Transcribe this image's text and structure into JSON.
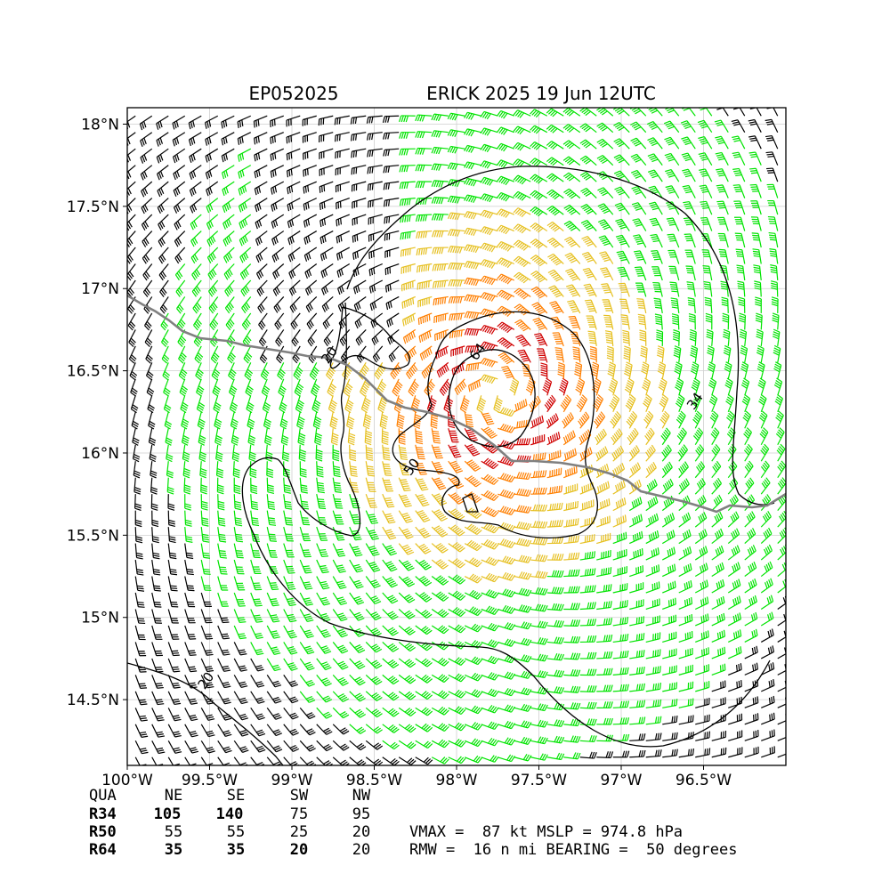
{
  "chart_data": {
    "type": "wind-barb map",
    "title_left": "EP052025",
    "title_right": "ERICK 2025 19 Jun 12UTC",
    "xlim": [
      -100.0,
      -96.0
    ],
    "ylim": [
      14.1,
      18.1
    ],
    "x_ticks": [
      -100,
      -99.5,
      -99,
      -98.5,
      -98,
      -97.5,
      -97,
      -96.5
    ],
    "x_tick_labels": [
      "100°W",
      "99.5°W",
      "99°W",
      "98.5°W",
      "98°W",
      "97.5°W",
      "97°W",
      "96.5°W"
    ],
    "y_ticks": [
      14.5,
      15,
      15.5,
      16,
      16.5,
      17,
      17.5,
      18
    ],
    "y_tick_labels": [
      "14.5°N",
      "15°N",
      "15.5°N",
      "16°N",
      "16.5°N",
      "17°N",
      "17.5°N",
      "18°N"
    ],
    "grid": true,
    "storm_center": {
      "lon": -97.75,
      "lat": 16.35
    },
    "contour_levels": [
      20,
      34,
      50,
      64
    ],
    "contour_labels": [
      {
        "text": "20",
        "lon": -98.75,
        "lat": 16.58
      },
      {
        "text": "20",
        "lon": -99.5,
        "lat": 14.6
      },
      {
        "text": "34",
        "lon": -96.53,
        "lat": 16.3
      },
      {
        "text": "50",
        "lon": -98.25,
        "lat": 15.9
      },
      {
        "text": "64",
        "lon": -97.85,
        "lat": 16.6
      }
    ],
    "speed_colors": {
      "below_34": "#000000",
      "34_to_50": "#00e400",
      "50_to_64": "#e6c020",
      "64_to_83": "#ff7f00",
      "above_83": "#d00000"
    },
    "contour_color": "#000000",
    "coastline_color": "#808080",
    "wind_radii_table": {
      "header": [
        "QUA",
        "NE",
        "SE",
        "SW",
        "NW"
      ],
      "rows": [
        [
          "R34",
          "105",
          "140",
          "75",
          "95"
        ],
        [
          "R50",
          "55",
          "55",
          "25",
          "20"
        ],
        [
          "R64",
          "35",
          "35",
          "20",
          "20"
        ]
      ]
    },
    "summary_line1": "VMAX =  87 kt MSLP = 974.8 hPa",
    "summary_line2": "RMW =  16 n mi BEARING =  50 degrees"
  }
}
